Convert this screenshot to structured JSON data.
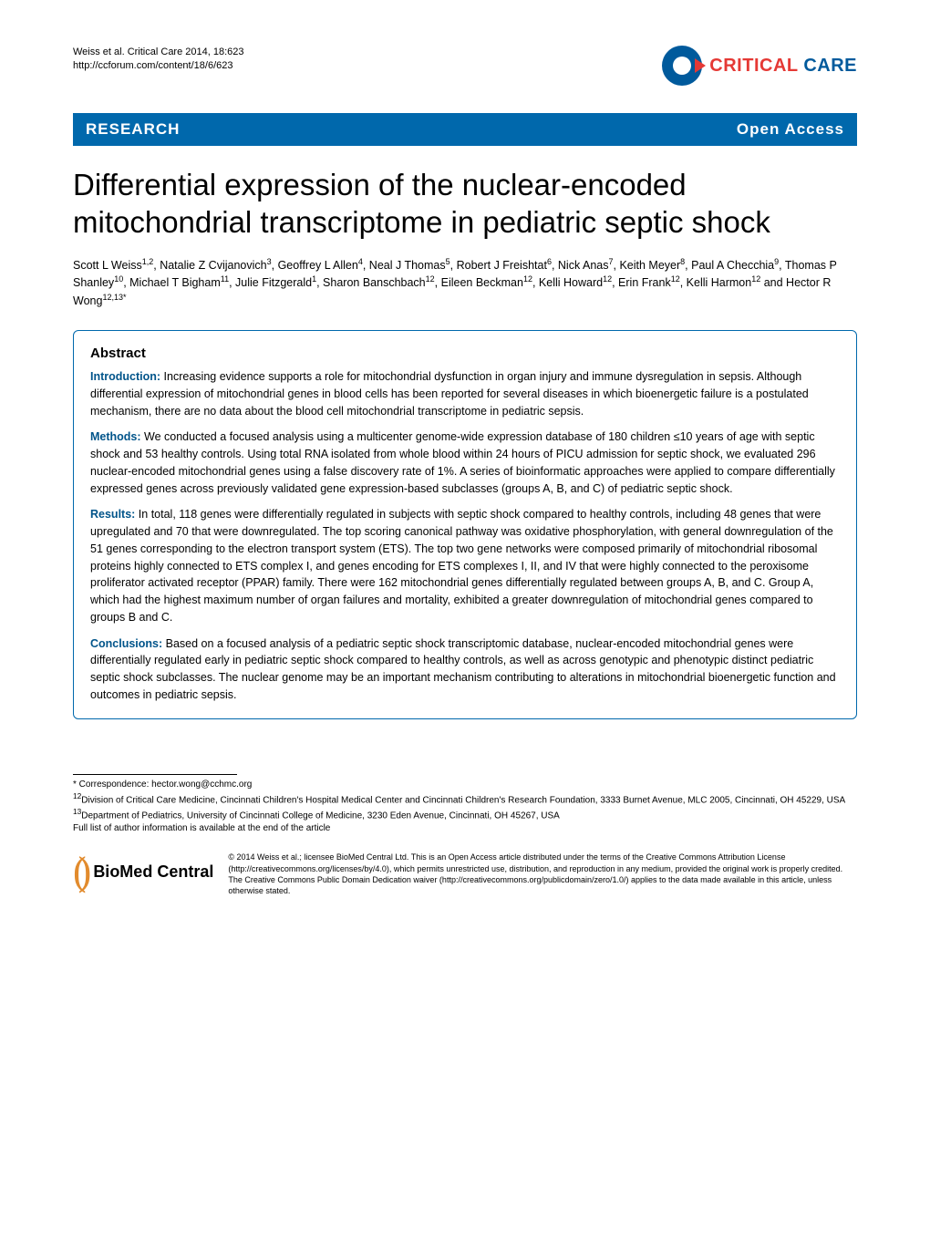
{
  "header": {
    "citation_line1": "Weiss et al. Critical Care 2014, 18:623",
    "citation_line2": "http://ccforum.com/content/18/6/623",
    "journal_name_1": "CRITICAL",
    "journal_name_2": " CARE"
  },
  "banner": {
    "left": "RESEARCH",
    "right": "Open Access"
  },
  "title": "Differential expression of the nuclear-encoded mitochondrial transcriptome in pediatric septic shock",
  "authors_html": "Scott L Weiss<sup>1,2</sup>, Natalie Z Cvijanovich<sup>3</sup>, Geoffrey L Allen<sup>4</sup>, Neal J Thomas<sup>5</sup>, Robert J Freishtat<sup>6</sup>, Nick Anas<sup>7</sup>, Keith Meyer<sup>8</sup>, Paul A Checchia<sup>9</sup>, Thomas P Shanley<sup>10</sup>, Michael T Bigham<sup>11</sup>, Julie Fitzgerald<sup>1</sup>, Sharon Banschbach<sup>12</sup>, Eileen Beckman<sup>12</sup>, Kelli Howard<sup>12</sup>, Erin Frank<sup>12</sup>, Kelli Harmon<sup>12</sup> and Hector R Wong<sup>12,13*</sup>",
  "abstract": {
    "heading": "Abstract",
    "intro_label": "Introduction:",
    "intro_text": " Increasing evidence supports a role for mitochondrial dysfunction in organ injury and immune dysregulation in sepsis. Although differential expression of mitochondrial genes in blood cells has been reported for several diseases in which bioenergetic failure is a postulated mechanism, there are no data about the blood cell mitochondrial transcriptome in pediatric sepsis.",
    "methods_label": "Methods:",
    "methods_text": " We conducted a focused analysis using a multicenter genome-wide expression database of 180 children ≤10 years of age with septic shock and 53 healthy controls. Using total RNA isolated from whole blood within 24 hours of PICU admission for septic shock, we evaluated 296 nuclear-encoded mitochondrial genes using a false discovery rate of 1%. A series of bioinformatic approaches were applied to compare differentially expressed genes across previously validated gene expression-based subclasses (groups A, B, and C) of pediatric septic shock.",
    "results_label": "Results:",
    "results_text": " In total, 118 genes were differentially regulated in subjects with septic shock compared to healthy controls, including 48 genes that were upregulated and 70 that were downregulated. The top scoring canonical pathway was oxidative phosphorylation, with general downregulation of the 51 genes corresponding to the electron transport system (ETS). The top two gene networks were composed primarily of mitochondrial ribosomal proteins highly connected to ETS complex I, and genes encoding for ETS complexes I, II, and IV that were highly connected to the peroxisome proliferator activated receptor (PPAR) family. There were 162 mitochondrial genes differentially regulated between groups A, B, and C. Group A, which had the highest maximum number of organ failures and mortality, exhibited a greater downregulation of mitochondrial genes compared to groups B and C.",
    "conclusions_label": "Conclusions:",
    "conclusions_text": " Based on a focused analysis of a pediatric septic shock transcriptomic database, nuclear-encoded mitochondrial genes were differentially regulated early in pediatric septic shock compared to healthy controls, as well as across genotypic and phenotypic distinct pediatric septic shock subclasses. The nuclear genome may be an important mechanism contributing to alterations in mitochondrial bioenergetic function and outcomes in pediatric sepsis."
  },
  "footer": {
    "correspondence": "* Correspondence: hector.wong@cchmc.org",
    "affil12": "12Division of Critical Care Medicine, Cincinnati Children's Hospital Medical Center and Cincinnati Children's Research Foundation, 3333 Burnet Avenue, MLC 2005, Cincinnati, OH 45229, USA",
    "affil13": "13Department of Pediatrics, University of Cincinnati College of Medicine, 3230 Eden Avenue, Cincinnati, OH 45267, USA",
    "full_list": "Full list of author information is available at the end of the article",
    "bmc_brand": "BioMed Central",
    "license": "© 2014 Weiss et al.; licensee BioMed Central Ltd. This is an Open Access article distributed under the terms of the Creative Commons Attribution License (http://creativecommons.org/licenses/by/4.0), which permits unrestricted use, distribution, and reproduction in any medium, provided the original work is properly credited. The Creative Commons Public Domain Dedication waiver (http://creativecommons.org/publicdomain/zero/1.0/) applies to the data made available in this article, unless otherwise stated."
  },
  "colors": {
    "banner_bg": "#0068ac",
    "banner_fg": "#ffffff",
    "abstract_border": "#0068ac",
    "section_label": "#00548a",
    "logo_blue": "#005a9c",
    "logo_red": "#e53935",
    "bmc_orange": "#e28b2d"
  }
}
